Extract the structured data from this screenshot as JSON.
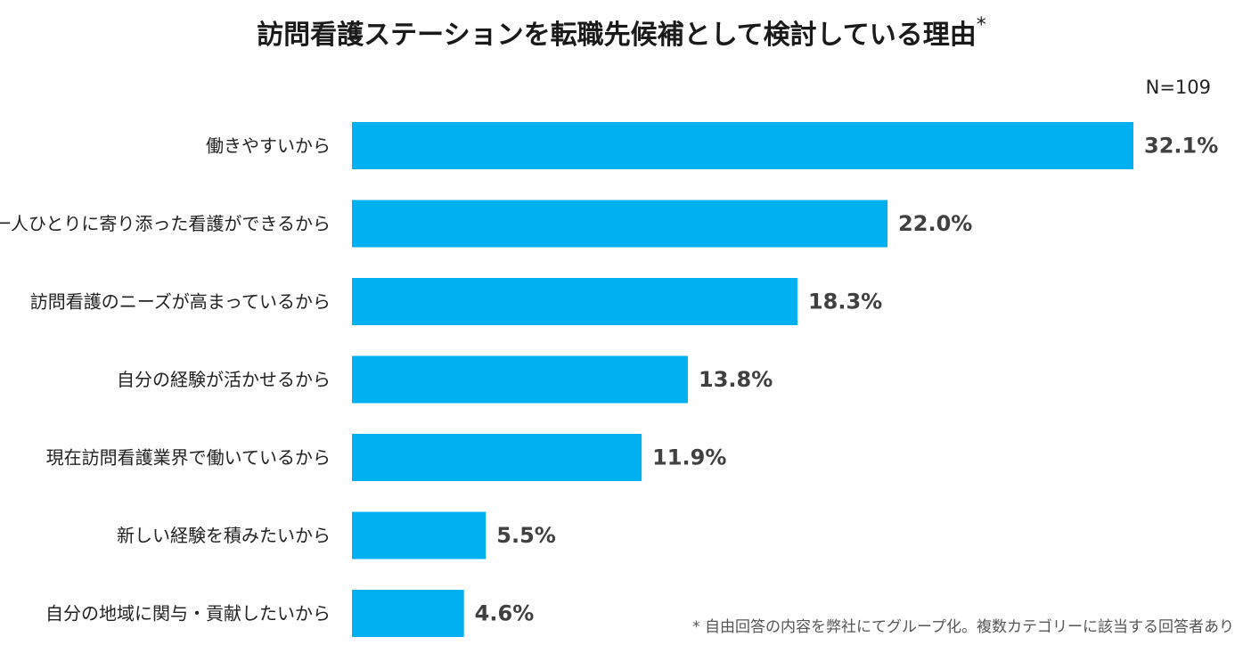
{
  "chart_data": {
    "type": "bar",
    "orientation": "horizontal",
    "title": "訪問看護ステーションを転職先候補として検討している理由",
    "title_mark": "*",
    "sample_size": "N=109",
    "categories": [
      "働きやすいから",
      "一人ひとりに寄り添った看護ができるから",
      "訪問看護のニーズが高まっているから",
      "自分の経験が活かせるから",
      "現在訪問看護業界で働いているから",
      "新しい経験を積みたいから",
      "自分の地域に関与・貢献したいから"
    ],
    "values": [
      32.1,
      22.0,
      18.3,
      13.8,
      11.9,
      5.5,
      4.6
    ],
    "value_labels": [
      "32.1%",
      "22.0%",
      "18.3%",
      "13.8%",
      "11.9%",
      "5.5%",
      "4.6%"
    ],
    "unit": "%",
    "xlim": [
      0,
      32.1
    ],
    "grid": false,
    "legend": "none",
    "bar_color": "#00b0f0",
    "footnote": "* 自由回答の内容を弊社にてグループ化。複数カテゴリーに該当する回答者あり"
  }
}
